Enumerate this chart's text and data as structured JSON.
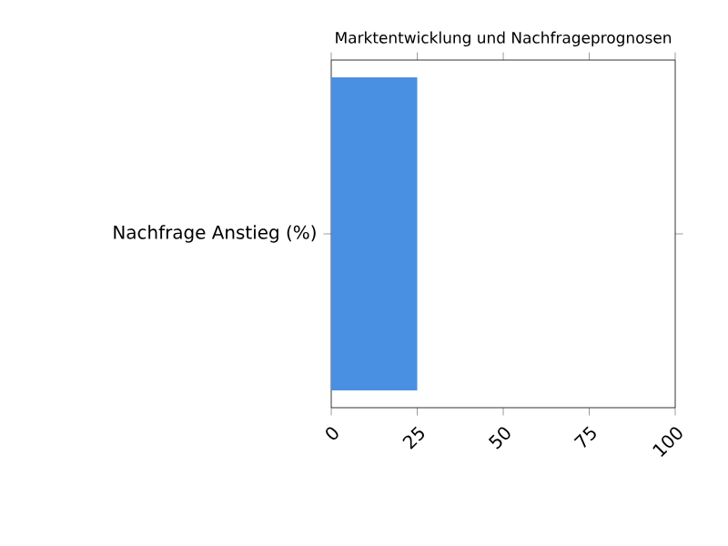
{
  "chart_data": {
    "type": "bar",
    "orientation": "horizontal",
    "title": "Marktentwicklung und Nachfrageprognosen",
    "categories": [
      "Nachfrage Anstieg (%)"
    ],
    "values": [
      25
    ],
    "color": "#4a90e2",
    "xlim": [
      0,
      100
    ],
    "xticks": [
      0,
      25,
      50,
      75,
      100
    ]
  }
}
